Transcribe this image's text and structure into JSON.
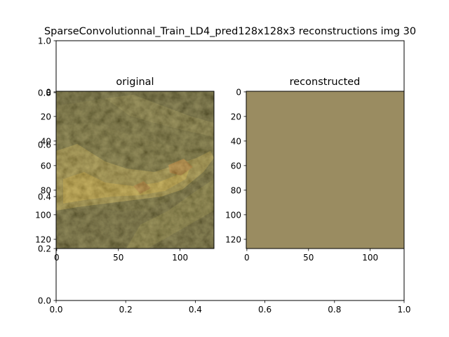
{
  "figure": {
    "title": "SparseConvolutionnal_Train_LD4_pred128x128x3 reconstructions img 30"
  },
  "chart_data": [
    {
      "type": "line",
      "role": "background-axes",
      "title": "SparseConvolutionnal_Train_LD4_pred128x128x3 reconstructions img 30",
      "xlim": [
        0.0,
        1.0
      ],
      "ylim": [
        0.0,
        1.0
      ],
      "xticks": [
        "0.0",
        "0.2",
        "0.4",
        "0.6",
        "0.8",
        "1.0"
      ],
      "yticks": [
        "0.0",
        "0.2",
        "0.4",
        "0.6",
        "0.8",
        "1.0"
      ],
      "grid": false,
      "series": []
    },
    {
      "type": "heatmap",
      "title": "original",
      "description": "photo",
      "xlim": [
        0,
        127
      ],
      "ylim": [
        127,
        0
      ],
      "xticks": [
        "0",
        "50",
        "100"
      ],
      "yticks": [
        "0",
        "20",
        "40",
        "60",
        "80",
        "100",
        "120"
      ],
      "colors": {
        "dark_moss": "#3e3d1f",
        "olive": "#6b6531",
        "ochre": "#9d8a3e",
        "bright_algae": "#c7a43a",
        "orange_patch": "#b8782c"
      }
    },
    {
      "type": "heatmap",
      "title": "reconstructed",
      "description": "uniform fill",
      "xlim": [
        0,
        127
      ],
      "ylim": [
        127,
        0
      ],
      "xticks": [
        "0",
        "50",
        "100"
      ],
      "yticks": [
        "0",
        "20",
        "40",
        "60",
        "80",
        "100",
        "120"
      ],
      "colors": {
        "fill": "#9a8c61"
      }
    }
  ]
}
